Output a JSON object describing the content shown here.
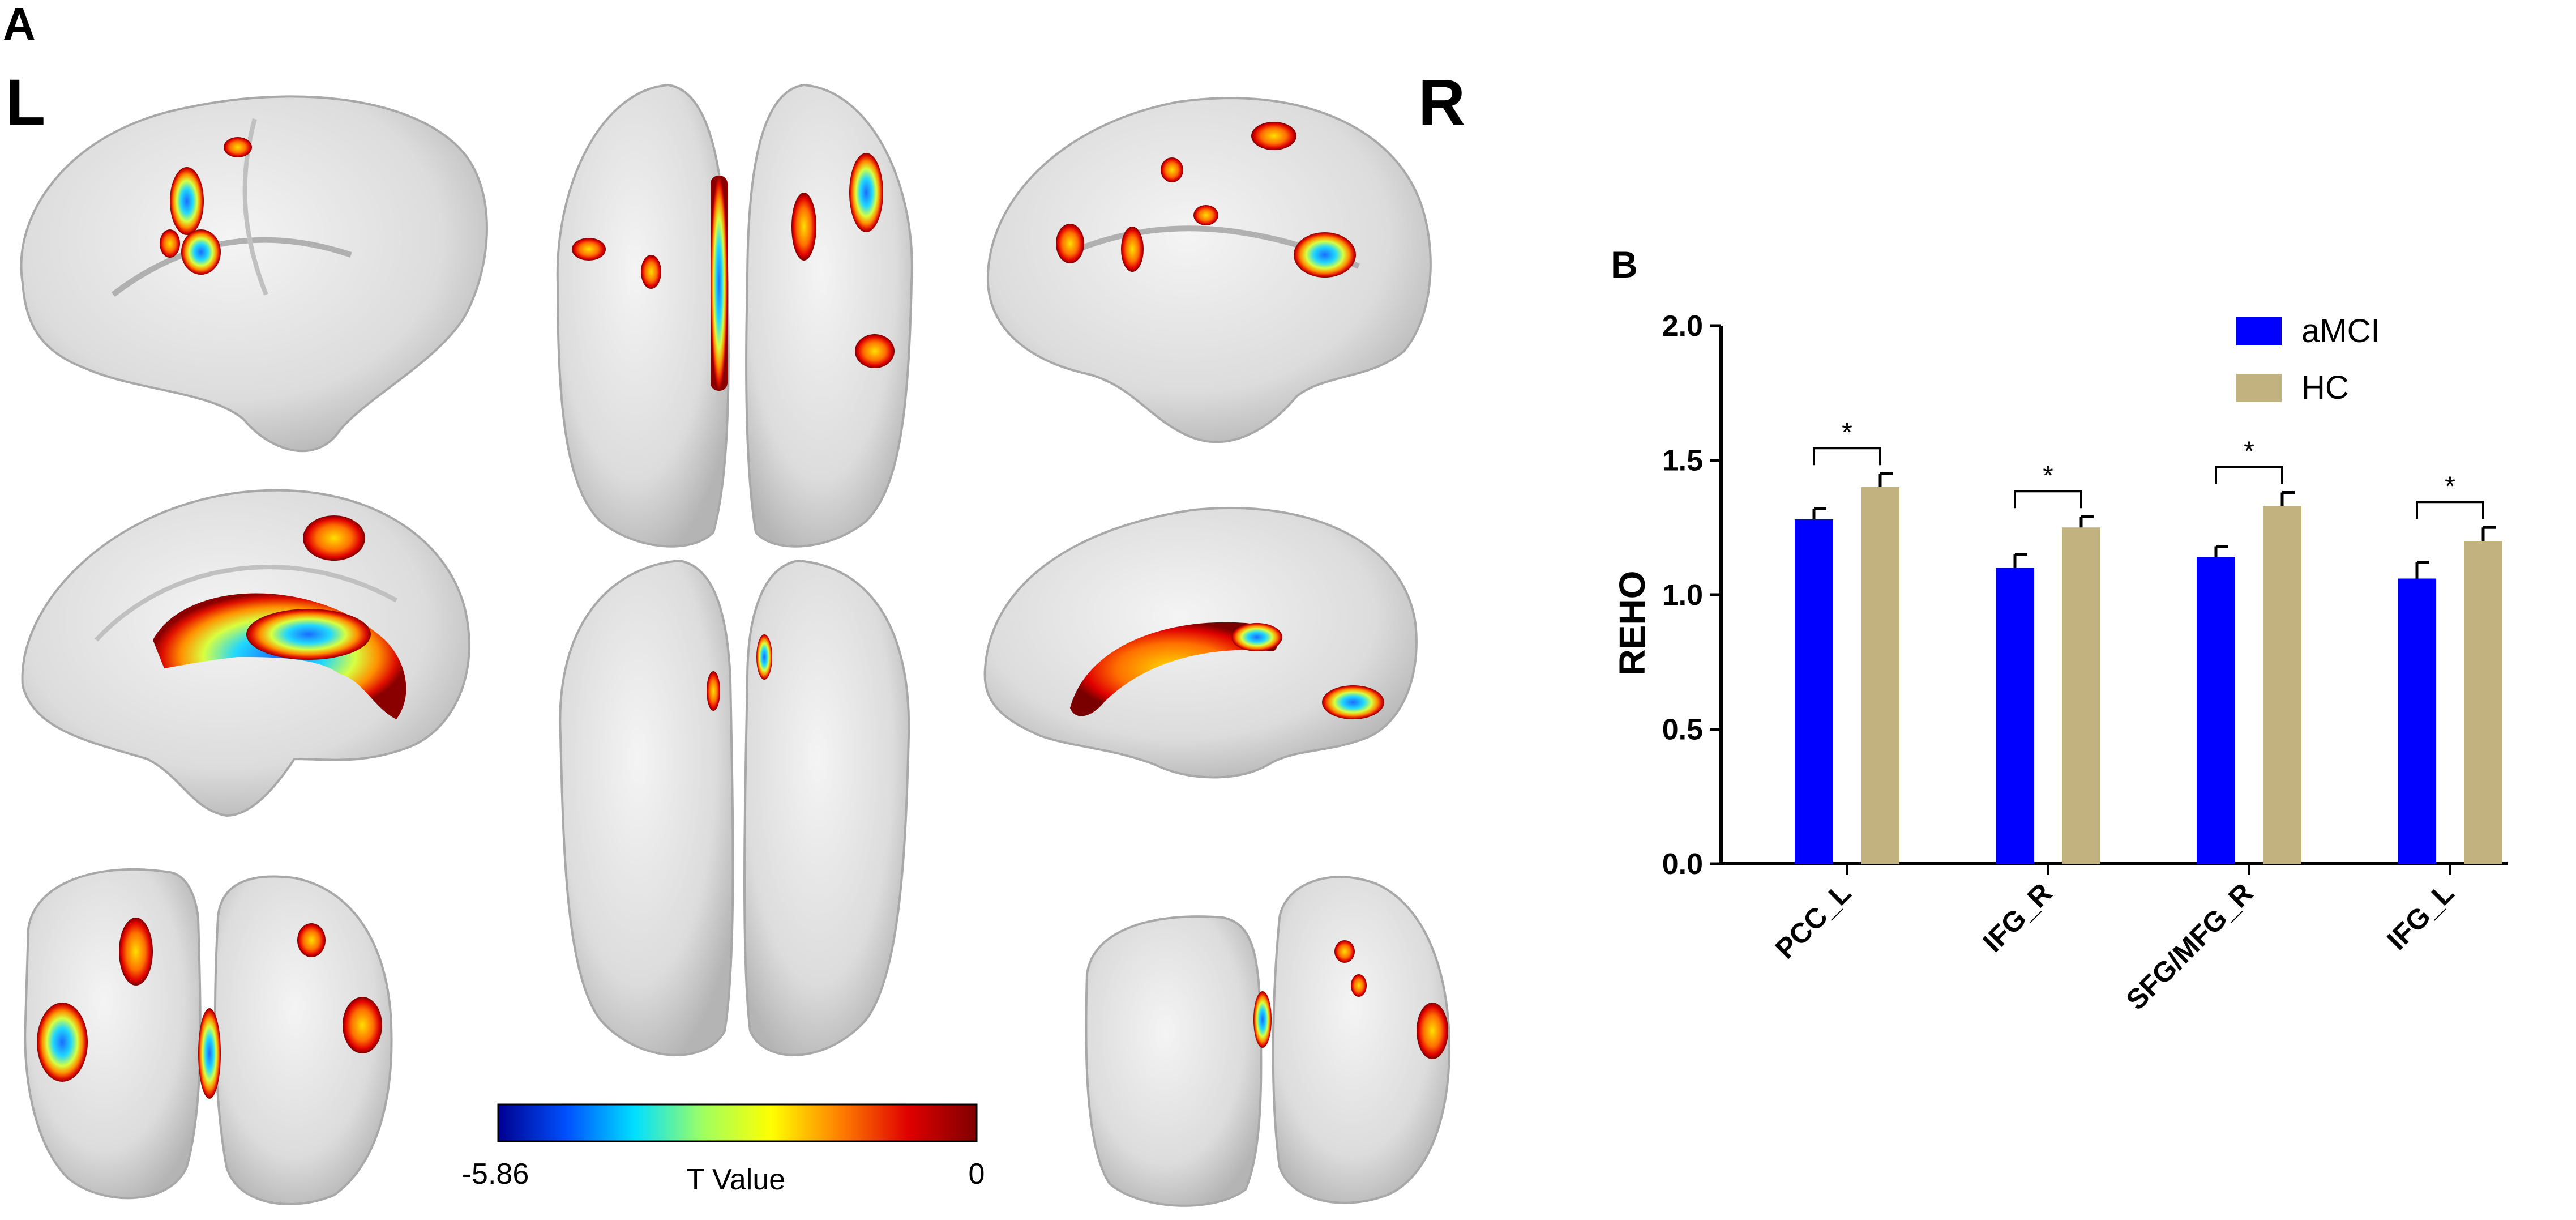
{
  "panel_a": {
    "label": "A",
    "left_label": "L",
    "right_label": "R",
    "colorbar": {
      "min_label": "-5.86",
      "max_label": "0",
      "title": "T Value",
      "colors": [
        "#00008f",
        "#0050ff",
        "#00e0ff",
        "#a0ff60",
        "#ffff00",
        "#ff8000",
        "#e00000",
        "#800000"
      ]
    }
  },
  "panel_b": {
    "label": "B"
  },
  "chart_data": {
    "type": "bar",
    "categories": [
      "PCC_L",
      "IFG_R",
      "SFG/MFG_R",
      "IFG_L"
    ],
    "series": [
      {
        "name": "aMCI",
        "color": "#0000ff",
        "values": [
          1.28,
          1.1,
          1.14,
          1.06
        ],
        "errors": [
          0.04,
          0.05,
          0.04,
          0.06
        ]
      },
      {
        "name": "HC",
        "color": "#c2b280",
        "values": [
          1.4,
          1.25,
          1.33,
          1.2
        ],
        "errors": [
          0.05,
          0.04,
          0.05,
          0.05
        ]
      }
    ],
    "significance": [
      "*",
      "*",
      "*",
      "*"
    ],
    "ylabel": "REHO",
    "xlabel": "",
    "title": "",
    "ylim": [
      0,
      2.0
    ],
    "yticks": [
      "0.0",
      "0.5",
      "1.0",
      "1.5",
      "2.0"
    ],
    "legend_position": "top-right",
    "grid": false
  }
}
